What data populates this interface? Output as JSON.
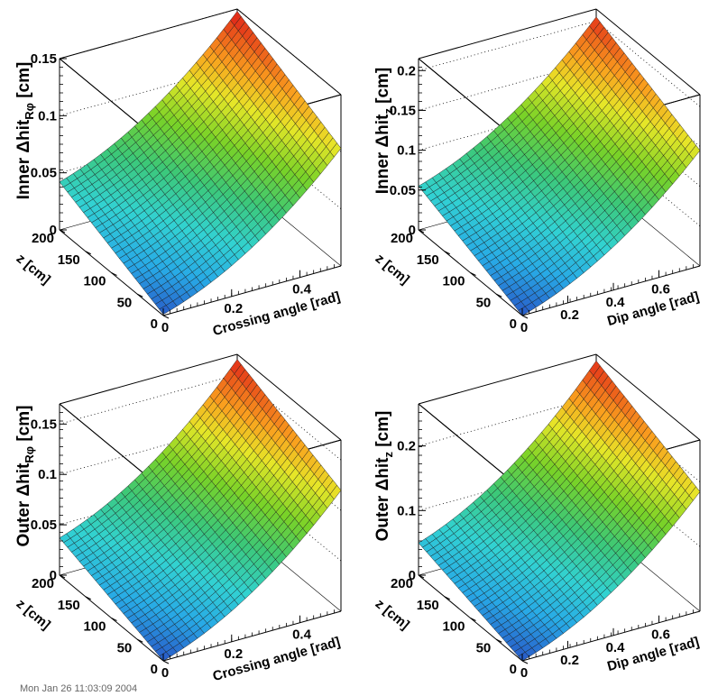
{
  "chart_data": [
    {
      "type": "surface",
      "ylabel": {
        "prefix": "Inner ",
        "delta": "Δ",
        "main": "hit",
        "sub": "Rφ",
        "unit": " [cm]"
      },
      "xlabel": "Crossing angle [rad]",
      "zlabel": "z [cm]",
      "xlim": [
        0,
        0.52
      ],
      "zlim": [
        0,
        200
      ],
      "ylim": [
        0,
        0.15
      ],
      "x_ticks": [
        "0",
        "0.2",
        "0.4"
      ],
      "x_tick_values": [
        0,
        0.2,
        0.4
      ],
      "z_ticks": [
        "0",
        "50",
        "100",
        "150",
        "200"
      ],
      "z_tick_values": [
        0,
        50,
        100,
        150,
        200
      ],
      "y_ticks": [
        "0",
        "0.05",
        "0.1",
        "0.15"
      ],
      "y_tick_values": [
        0,
        0.05,
        0.1,
        0.15
      ],
      "corner_values": {
        "x0_z200": 0.042,
        "x0_z0": 0.001,
        "xmax_z200": 0.148,
        "xmax_z0": 0.103
      }
    },
    {
      "type": "surface",
      "ylabel": {
        "prefix": "Inner ",
        "delta": "Δ",
        "main": "hit",
        "sub": "z",
        "unit": " [cm]"
      },
      "xlabel": "Dip angle [rad]",
      "zlabel": "z [cm]",
      "xlim": [
        0,
        0.78
      ],
      "zlim": [
        0,
        200
      ],
      "ylim": [
        0,
        0.215
      ],
      "x_ticks": [
        "0",
        "0.2",
        "0.4",
        "0.6"
      ],
      "x_tick_values": [
        0,
        0.2,
        0.4,
        0.6
      ],
      "z_ticks": [
        "0",
        "50",
        "100",
        "150",
        "200"
      ],
      "z_tick_values": [
        0,
        50,
        100,
        150,
        200
      ],
      "y_ticks": [
        "0",
        "0.05",
        "0.1",
        "0.15",
        "0.2"
      ],
      "y_tick_values": [
        0,
        0.05,
        0.1,
        0.15,
        0.2
      ],
      "corner_values": {
        "x0_z200": 0.055,
        "x0_z0": 0.0,
        "xmax_z200": 0.205,
        "xmax_z0": 0.145
      }
    },
    {
      "type": "surface",
      "ylabel": {
        "prefix": "Outer ",
        "delta": "Δ",
        "main": "hit",
        "sub": "Rφ",
        "unit": " [cm]"
      },
      "xlabel": "Crossing angle [rad]",
      "zlabel": "z [cm]",
      "xlim": [
        0,
        0.52
      ],
      "zlim": [
        0,
        200
      ],
      "ylim": [
        0,
        0.17
      ],
      "x_ticks": [
        "0",
        "0.2",
        "0.4"
      ],
      "x_tick_values": [
        0,
        0.2,
        0.4
      ],
      "z_ticks": [
        "0",
        "50",
        "100",
        "150",
        "200"
      ],
      "z_tick_values": [
        0,
        50,
        100,
        150,
        200
      ],
      "y_ticks": [
        "0",
        "0.05",
        "0.1",
        "0.15"
      ],
      "y_tick_values": [
        0,
        0.05,
        0.1,
        0.15
      ],
      "corner_values": {
        "x0_z200": 0.037,
        "x0_z0": 0.0,
        "xmax_z200": 0.165,
        "xmax_z0": 0.12
      }
    },
    {
      "type": "surface",
      "ylabel": {
        "prefix": "Outer ",
        "delta": "Δ",
        "main": "hit",
        "sub": "z",
        "unit": " [cm]"
      },
      "xlabel": "Dip angle [rad]",
      "zlabel": "z [cm]",
      "xlim": [
        0,
        0.78
      ],
      "zlim": [
        0,
        200
      ],
      "ylim": [
        0,
        0.265
      ],
      "x_ticks": [
        "0",
        "0.2",
        "0.4",
        "0.6"
      ],
      "x_tick_values": [
        0,
        0.2,
        0.4,
        0.6
      ],
      "z_ticks": [
        "0",
        "50",
        "100",
        "150",
        "200"
      ],
      "z_tick_values": [
        0,
        50,
        100,
        150,
        200
      ],
      "y_ticks": [
        "0",
        "0.1",
        "0.2"
      ],
      "y_tick_values": [
        0,
        0.1,
        0.2
      ],
      "corner_values": {
        "x0_z200": 0.05,
        "x0_z0": 0.0,
        "xmax_z200": 0.255,
        "xmax_z0": 0.185
      }
    }
  ],
  "footer": "Mon Jan 26 11:03:09 2004"
}
